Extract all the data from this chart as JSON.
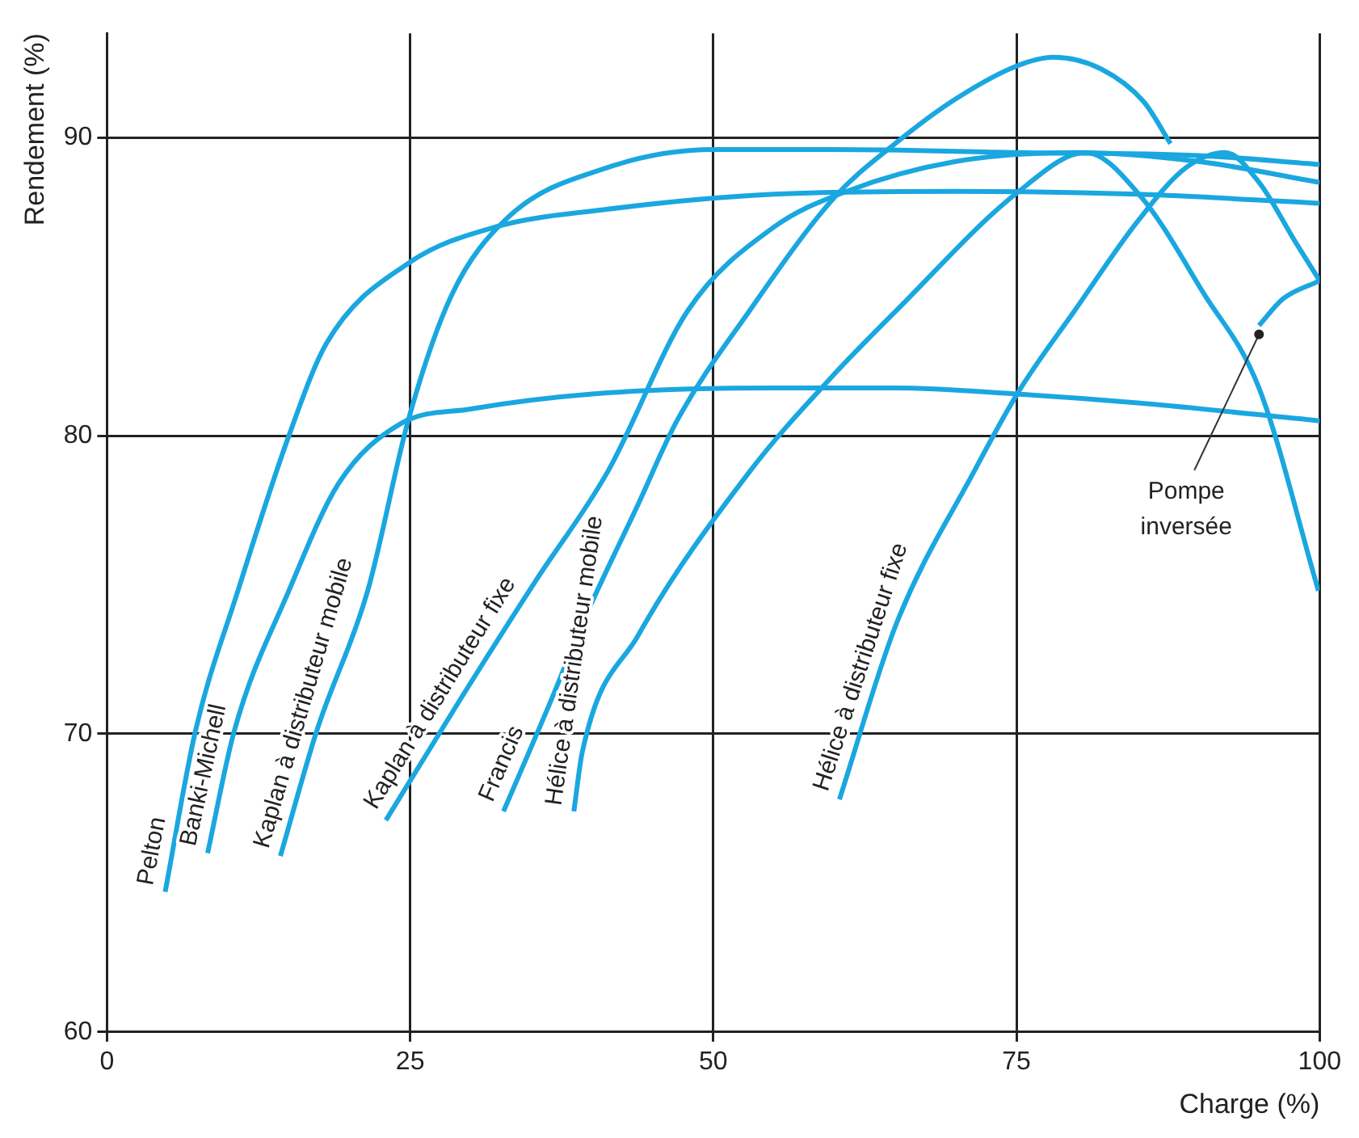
{
  "chart_data": {
    "type": "line",
    "xlabel": "Charge (%)",
    "ylabel": "Rendement (%)",
    "xlim": [
      0,
      100
    ],
    "xticks": [
      0,
      25,
      50,
      75,
      100
    ],
    "ylim": [
      60,
      93.5
    ],
    "yticks": [
      60,
      70,
      80,
      90
    ],
    "grid": true,
    "legend": false,
    "marker": "none",
    "line_style": "solid",
    "series": [
      {
        "name": "Pelton",
        "color": "#1aa7e0",
        "x": [
          4.8,
          7.3,
          10.8,
          15,
          18.1,
          24.9,
          32,
          41.3,
          55,
          70,
          85,
          100
        ],
        "values": [
          64.7,
          70.1,
          74.8,
          80,
          83.1,
          85.8,
          87,
          87.6,
          88.1,
          88.2,
          88.1,
          87.8
        ]
      },
      {
        "name": "Banki-Michell",
        "color": "#1aa7e0",
        "x": [
          8.3,
          10.5,
          15,
          19.1,
          24.2,
          30,
          40,
          55,
          65,
          75,
          85,
          100
        ],
        "values": [
          66,
          70.1,
          74.8,
          78.4,
          80.4,
          80.9,
          81.4,
          81.6,
          81.6,
          81.4,
          81.1,
          80.5
        ]
      },
      {
        "name": "Kaplan à distributeur mobile",
        "color": "#1aa7e0",
        "x": [
          14.3,
          17.3,
          21.5,
          24.9,
          28.4,
          33,
          41.3,
          50,
          60,
          75,
          90,
          100
        ],
        "values": [
          65.9,
          70.1,
          74.8,
          80.6,
          84.7,
          87.3,
          89,
          89.6,
          89.6,
          89.5,
          89.4,
          89.1
        ]
      },
      {
        "name": "Kaplan à distributeur fixe",
        "color": "#1aa7e0",
        "x": [
          23,
          29.2,
          35.3,
          41.3,
          47.9,
          55,
          61,
          70,
          80,
          90,
          100
        ],
        "values": [
          67.1,
          71.2,
          75.1,
          78.8,
          84.2,
          87,
          88.2,
          89.2,
          89.5,
          89.2,
          88.5
        ]
      },
      {
        "name": "Francis",
        "color": "#1aa7e0",
        "x": [
          32.7,
          36.7,
          39.2,
          43.8,
          47,
          53,
          60,
          65,
          70,
          75,
          78,
          82,
          85.5,
          87.7
        ],
        "values": [
          67.4,
          71.2,
          73.7,
          77.7,
          80.5,
          84.2,
          88,
          89.8,
          91.3,
          92.4,
          92.7,
          92.3,
          91.2,
          89.8
        ]
      },
      {
        "name": "Hélice à distributeur mobile",
        "color": "#1aa7e0",
        "x": [
          38.5,
          39.2,
          43.8,
          53,
          59.6,
          65.1,
          75.2,
          80.7,
          85.3,
          90.4,
          95,
          99.9
        ],
        "values": [
          67.4,
          69.4,
          73.3,
          78.8,
          81.9,
          84.2,
          88.2,
          89.5,
          88,
          84.8,
          81.6,
          74.8
        ]
      },
      {
        "name": "Hélice à distributeur fixe",
        "color": "#1aa7e0",
        "x": [
          60.4,
          65.1,
          71.5,
          75.2,
          79.8,
          85,
          89,
          92.2,
          95,
          98,
          100
        ],
        "values": [
          67.8,
          73.7,
          78.8,
          81.5,
          84.2,
          87.2,
          89,
          89.5,
          88.5,
          86.5,
          85.2
        ]
      },
      {
        "color": "#1aa7e0",
        "x": [
          95,
          97,
          100
        ],
        "values": [
          83.7,
          84.6,
          85.2
        ]
      }
    ],
    "annotations": [
      {
        "text": "Pompe inversée",
        "x": 95,
        "y": 83.4
      }
    ]
  }
}
